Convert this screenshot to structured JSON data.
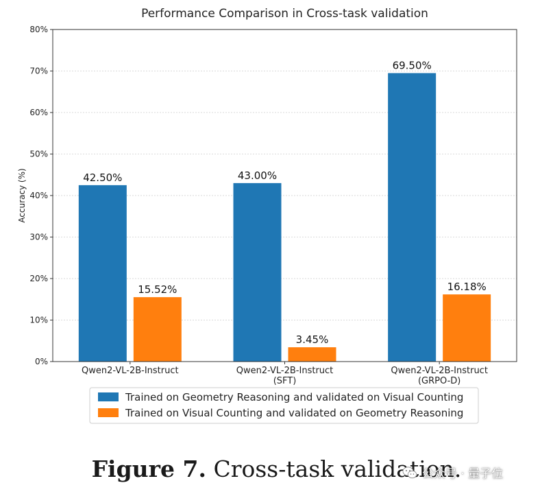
{
  "chart_data": {
    "type": "bar",
    "title": "Performance Comparison in Cross-task validation",
    "xlabel": "",
    "ylabel": "Accuracy (%)",
    "ylim": [
      0,
      80
    ],
    "yticks": [
      0,
      10,
      20,
      30,
      40,
      50,
      60,
      70,
      80
    ],
    "ytick_labels": [
      "0%",
      "10%",
      "20%",
      "30%",
      "40%",
      "50%",
      "60%",
      "70%",
      "80%"
    ],
    "grid": true,
    "categories": [
      [
        "Qwen2-VL-2B-Instruct"
      ],
      [
        "Qwen2-VL-2B-Instruct",
        "(SFT)"
      ],
      [
        "Qwen2-VL-2B-Instruct",
        "(GRPO-D)"
      ]
    ],
    "series": [
      {
        "name": "Trained on Geometry Reasoning and validated on Visual Counting",
        "color": "#1f77b4",
        "values": [
          42.5,
          43.0,
          69.5
        ],
        "labels": [
          "42.50%",
          "43.00%",
          "69.50%"
        ]
      },
      {
        "name": "Trained on Visual Counting and validated on Geometry Reasoning",
        "color": "#ff7f0e",
        "values": [
          15.52,
          3.45,
          16.18
        ],
        "labels": [
          "15.52%",
          "3.45%",
          "16.18%"
        ]
      }
    ],
    "legend_position": "bottom-center"
  },
  "caption": {
    "label": "Figure 7.",
    "text": "Cross-task validation."
  },
  "watermark": {
    "text": "公众号 · 量子位",
    "icon": "wechat-icon"
  }
}
